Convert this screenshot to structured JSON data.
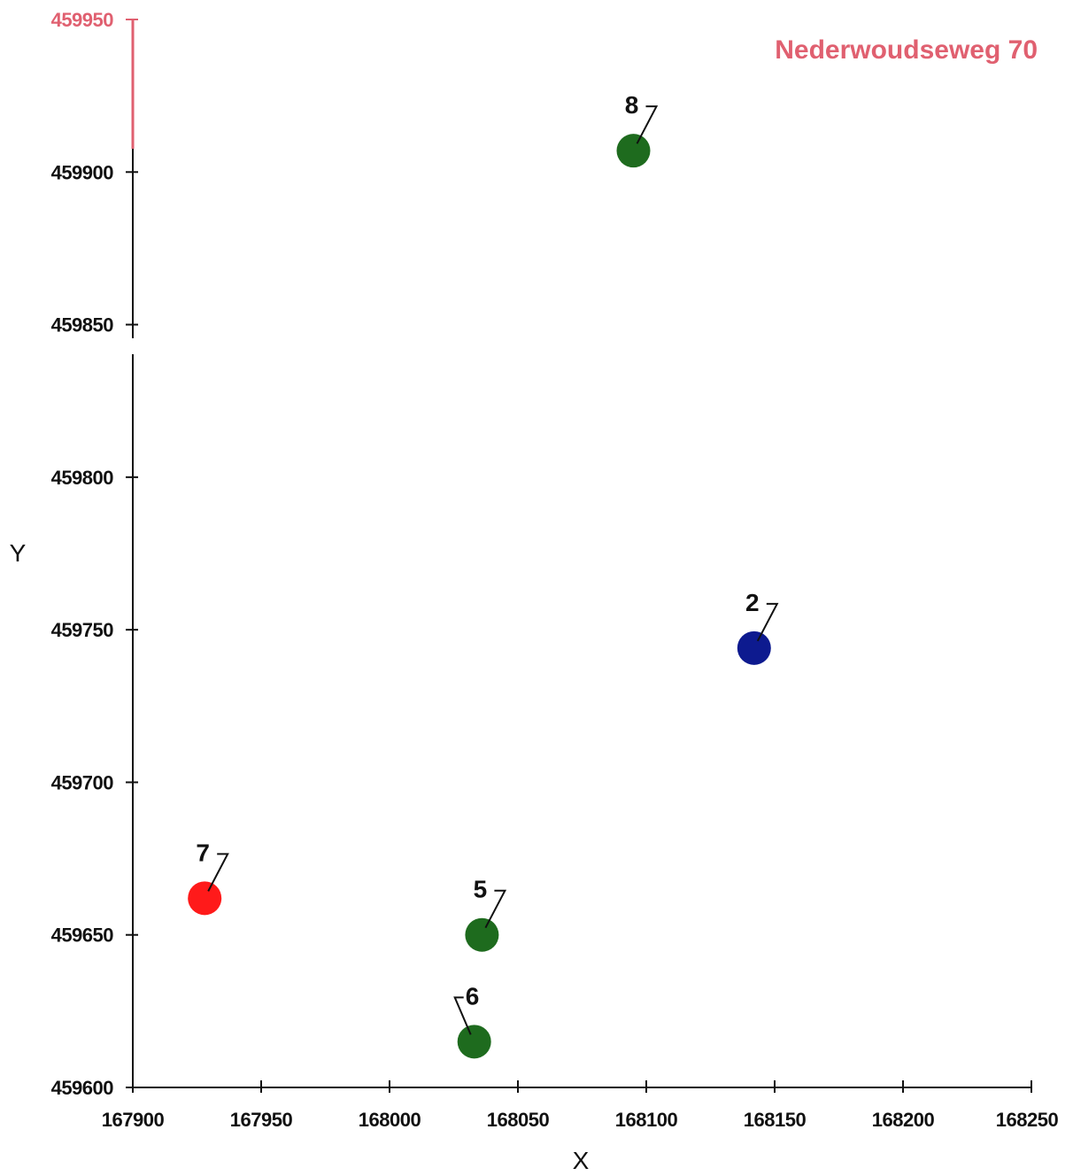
{
  "chart_data": {
    "type": "scatter",
    "title": "Nederwoudseweg 70",
    "xlabel": "X",
    "ylabel": "Y",
    "xlim": [
      167900,
      168250
    ],
    "ylim": [
      459600,
      459950
    ],
    "x_ticks": [
      "167900",
      "167950",
      "168000",
      "168050",
      "168100",
      "168150",
      "168200",
      "168250"
    ],
    "y_ticks": [
      "459600",
      "459650",
      "459700",
      "459750",
      "459800",
      "459850",
      "459900",
      "459950"
    ],
    "grid": false,
    "points": [
      {
        "label": "8",
        "x": 168095,
        "y": 459907,
        "color": "#1e6b1e"
      },
      {
        "label": "2",
        "x": 168142,
        "y": 459744,
        "color": "#0d1a8f"
      },
      {
        "label": "7",
        "x": 167928,
        "y": 459662,
        "color": "#ff1a1a"
      },
      {
        "label": "5",
        "x": 168036,
        "y": 459650,
        "color": "#1e6b1e"
      },
      {
        "label": "6",
        "x": 168033,
        "y": 459615,
        "color": "#1e6b1e"
      }
    ],
    "colors": {
      "title": "#e06070",
      "top_tick": "#e06070",
      "axis": "#111111"
    }
  }
}
